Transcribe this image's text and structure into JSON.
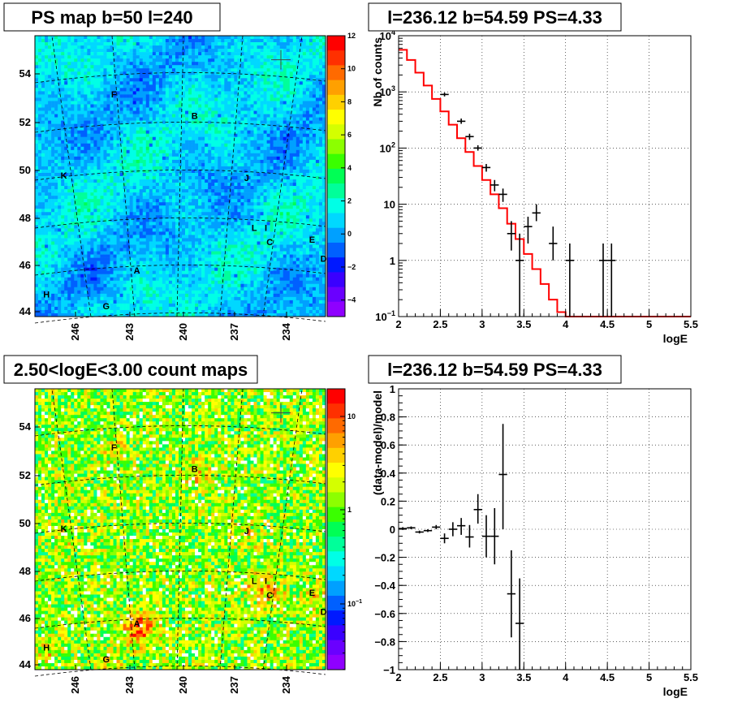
{
  "chart_data": [
    {
      "type": "heatmap",
      "title": "PS map b=50 l=240",
      "x_ticks": [
        "246",
        "243",
        "240",
        "237",
        "234"
      ],
      "y_ticks": [
        "54",
        "52",
        "50",
        "48",
        "46",
        "44"
      ],
      "colorbar_ticks": [
        "12",
        "10",
        "8",
        "6",
        "4",
        "2",
        "0",
        "−2",
        "−4"
      ],
      "zlim": [
        -5,
        12
      ],
      "sources": [
        {
          "label": "F",
          "l": 244.8,
          "b": 53.0
        },
        {
          "label": "B",
          "l": 240.6,
          "b": 52.1
        },
        {
          "label": "K",
          "l": 247.4,
          "b": 49.6
        },
        {
          "label": "J",
          "l": 237.9,
          "b": 49.5
        },
        {
          "label": "L",
          "l": 237.5,
          "b": 47.4
        },
        {
          "label": "I",
          "l": 236.9,
          "b": 47.4
        },
        {
          "label": "C",
          "l": 236.7,
          "b": 46.8
        },
        {
          "label": "E",
          "l": 234.5,
          "b": 46.9
        },
        {
          "label": "D",
          "l": 233.9,
          "b": 46.1
        },
        {
          "label": "A",
          "l": 243.6,
          "b": 45.6
        },
        {
          "label": "H",
          "l": 248.3,
          "b": 44.6
        },
        {
          "label": "G",
          "l": 245.2,
          "b": 44.1
        }
      ],
      "marker": {
        "l": 236.12,
        "b": 54.59
      }
    },
    {
      "type": "line",
      "title": "l=236.12 b=54.59 PS=4.33",
      "xlabel": "logE",
      "ylabel": "Nb of counts",
      "xlim": [
        2,
        5.5
      ],
      "ylim": [
        0.1,
        10000
      ],
      "y_scale": "log",
      "x_ticks": [
        "2",
        "2.5",
        "3",
        "3.5",
        "4",
        "4.5",
        "5",
        "5.5"
      ],
      "y_ticks": [
        {
          "base": "10",
          "exp": "4"
        },
        {
          "base": "10",
          "exp": "3"
        },
        {
          "base": "10",
          "exp": "2"
        },
        {
          "base": "10",
          "exp": ""
        },
        {
          "base": "1",
          "exp": ""
        },
        {
          "base": "10",
          "exp": "−1"
        }
      ],
      "model_edges": [
        2.0,
        2.1,
        2.2,
        2.3,
        2.4,
        2.5,
        2.6,
        2.7,
        2.8,
        2.9,
        3.0,
        3.1,
        3.2,
        3.3,
        3.4,
        3.5,
        3.6,
        3.7,
        3.8,
        3.9,
        4.0,
        5.5
      ],
      "model_values": [
        5600,
        3700,
        2200,
        1300,
        750,
        450,
        260,
        150,
        85,
        48,
        27,
        15,
        8.5,
        4.5,
        2.4,
        1.3,
        0.7,
        0.38,
        0.2,
        0.12,
        0.1
      ],
      "data": [
        {
          "x": 2.55,
          "y": 900,
          "lo": 830,
          "hi": 970
        },
        {
          "x": 2.75,
          "y": 300,
          "lo": 270,
          "hi": 335
        },
        {
          "x": 2.85,
          "y": 160,
          "lo": 140,
          "hi": 180
        },
        {
          "x": 2.95,
          "y": 100,
          "lo": 90,
          "hi": 112
        },
        {
          "x": 3.05,
          "y": 45,
          "lo": 38,
          "hi": 52
        },
        {
          "x": 3.15,
          "y": 22,
          "lo": 17,
          "hi": 27
        },
        {
          "x": 3.25,
          "y": 15,
          "lo": 11,
          "hi": 19
        },
        {
          "x": 3.35,
          "y": 3,
          "lo": 1.5,
          "hi": 5
        },
        {
          "x": 3.45,
          "y": 1,
          "lo": 0.1,
          "hi": 3
        },
        {
          "x": 3.55,
          "y": 4,
          "lo": 2,
          "hi": 6
        },
        {
          "x": 3.65,
          "y": 7,
          "lo": 5,
          "hi": 10
        },
        {
          "x": 3.85,
          "y": 2,
          "lo": 1,
          "hi": 4
        },
        {
          "x": 4.05,
          "y": 1,
          "lo": 0.1,
          "hi": 2
        },
        {
          "x": 4.45,
          "y": 1,
          "lo": 0.1,
          "hi": 2
        },
        {
          "x": 4.55,
          "y": 1,
          "lo": 0.1,
          "hi": 2
        }
      ],
      "model_color": "#ff0000"
    },
    {
      "type": "heatmap",
      "title": "2.50<logE<3.00 count maps",
      "x_ticks": [
        "246",
        "243",
        "240",
        "237",
        "234"
      ],
      "y_ticks": [
        "54",
        "52",
        "50",
        "48",
        "46",
        "44"
      ],
      "colorbar_ticks": [
        {
          "base": "10",
          "exp": ""
        },
        {
          "base": "1",
          "exp": ""
        },
        {
          "base": "10",
          "exp": "−1"
        }
      ],
      "z_scale": "log"
    },
    {
      "type": "scatter",
      "title": "l=236.12 b=54.59 PS=4.33",
      "xlabel": "logE",
      "ylabel": "(data-model)/model",
      "xlim": [
        2,
        5.5
      ],
      "ylim": [
        -1,
        1
      ],
      "x_ticks": [
        "2",
        "2.5",
        "3",
        "3.5",
        "4",
        "4.5",
        "5",
        "5.5"
      ],
      "y_ticks": [
        "1",
        "0.8",
        "0.6",
        "0.4",
        "0.2",
        "0",
        "−0.2",
        "−0.4",
        "−0.6",
        "−0.8",
        "−1"
      ],
      "data": [
        {
          "x": 2.05,
          "y": 0.005,
          "lo": -0.005,
          "hi": 0.015
        },
        {
          "x": 2.15,
          "y": 0.01,
          "lo": 0.0,
          "hi": 0.02
        },
        {
          "x": 2.25,
          "y": -0.02,
          "lo": -0.03,
          "hi": -0.01
        },
        {
          "x": 2.35,
          "y": -0.01,
          "lo": -0.02,
          "hi": 0.0
        },
        {
          "x": 2.45,
          "y": 0.015,
          "lo": 0.0,
          "hi": 0.03
        },
        {
          "x": 2.55,
          "y": -0.065,
          "lo": -0.1,
          "hi": -0.03
        },
        {
          "x": 2.65,
          "y": 0.0,
          "lo": -0.05,
          "hi": 0.05
        },
        {
          "x": 2.75,
          "y": 0.025,
          "lo": -0.04,
          "hi": 0.08
        },
        {
          "x": 2.85,
          "y": -0.055,
          "lo": -0.13,
          "hi": 0.03
        },
        {
          "x": 2.95,
          "y": 0.14,
          "lo": 0.04,
          "hi": 0.25
        },
        {
          "x": 3.05,
          "y": -0.05,
          "lo": -0.2,
          "hi": 0.1
        },
        {
          "x": 3.15,
          "y": -0.05,
          "lo": -0.25,
          "hi": 0.15
        },
        {
          "x": 3.25,
          "y": 0.39,
          "lo": 0.0,
          "hi": 0.75
        },
        {
          "x": 3.35,
          "y": -0.46,
          "lo": -0.77,
          "hi": -0.15
        },
        {
          "x": 3.45,
          "y": -0.67,
          "lo": -1.0,
          "hi": -0.35
        }
      ]
    }
  ]
}
